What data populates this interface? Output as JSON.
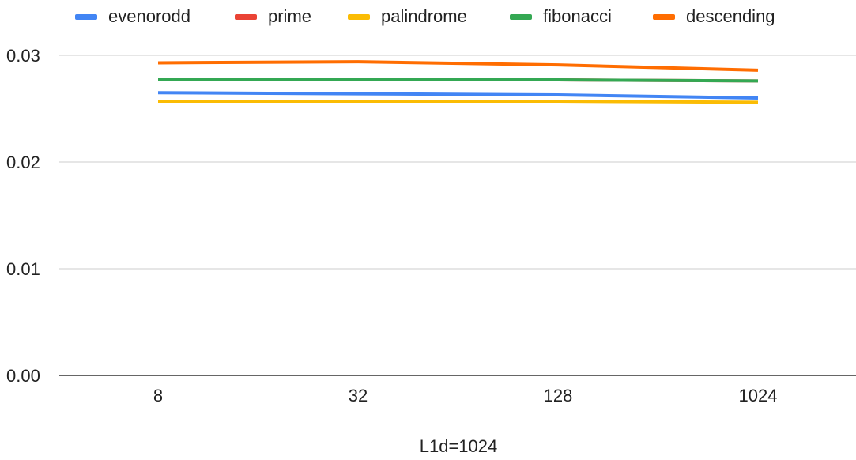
{
  "chart_data": {
    "type": "line",
    "title": "",
    "xlabel": "L1d=1024",
    "ylabel": "",
    "categories": [
      "8",
      "32",
      "128",
      "1024"
    ],
    "ylim": [
      0,
      0.03
    ],
    "yticks": [
      "0.00",
      "0.01",
      "0.02",
      "0.03"
    ],
    "ytick_values": [
      0,
      0.01,
      0.02,
      0.03
    ],
    "grid": true,
    "legend_position": "top",
    "series": [
      {
        "name": "evenorodd",
        "color": "#4285f4",
        "values": [
          0.0265,
          0.0264,
          0.0263,
          0.026
        ]
      },
      {
        "name": "prime",
        "color": "#ea4335",
        "values": [
          0.0277,
          0.0277,
          0.0277,
          0.0276
        ]
      },
      {
        "name": "palindrome",
        "color": "#fbbc04",
        "values": [
          0.0257,
          0.0257,
          0.0257,
          0.0256
        ]
      },
      {
        "name": "fibonacci",
        "color": "#34a853",
        "values": [
          0.0277,
          0.0277,
          0.0277,
          0.0276
        ]
      },
      {
        "name": "descending",
        "color": "#ff6d01",
        "values": [
          0.0293,
          0.0294,
          0.0291,
          0.0286
        ]
      }
    ]
  }
}
